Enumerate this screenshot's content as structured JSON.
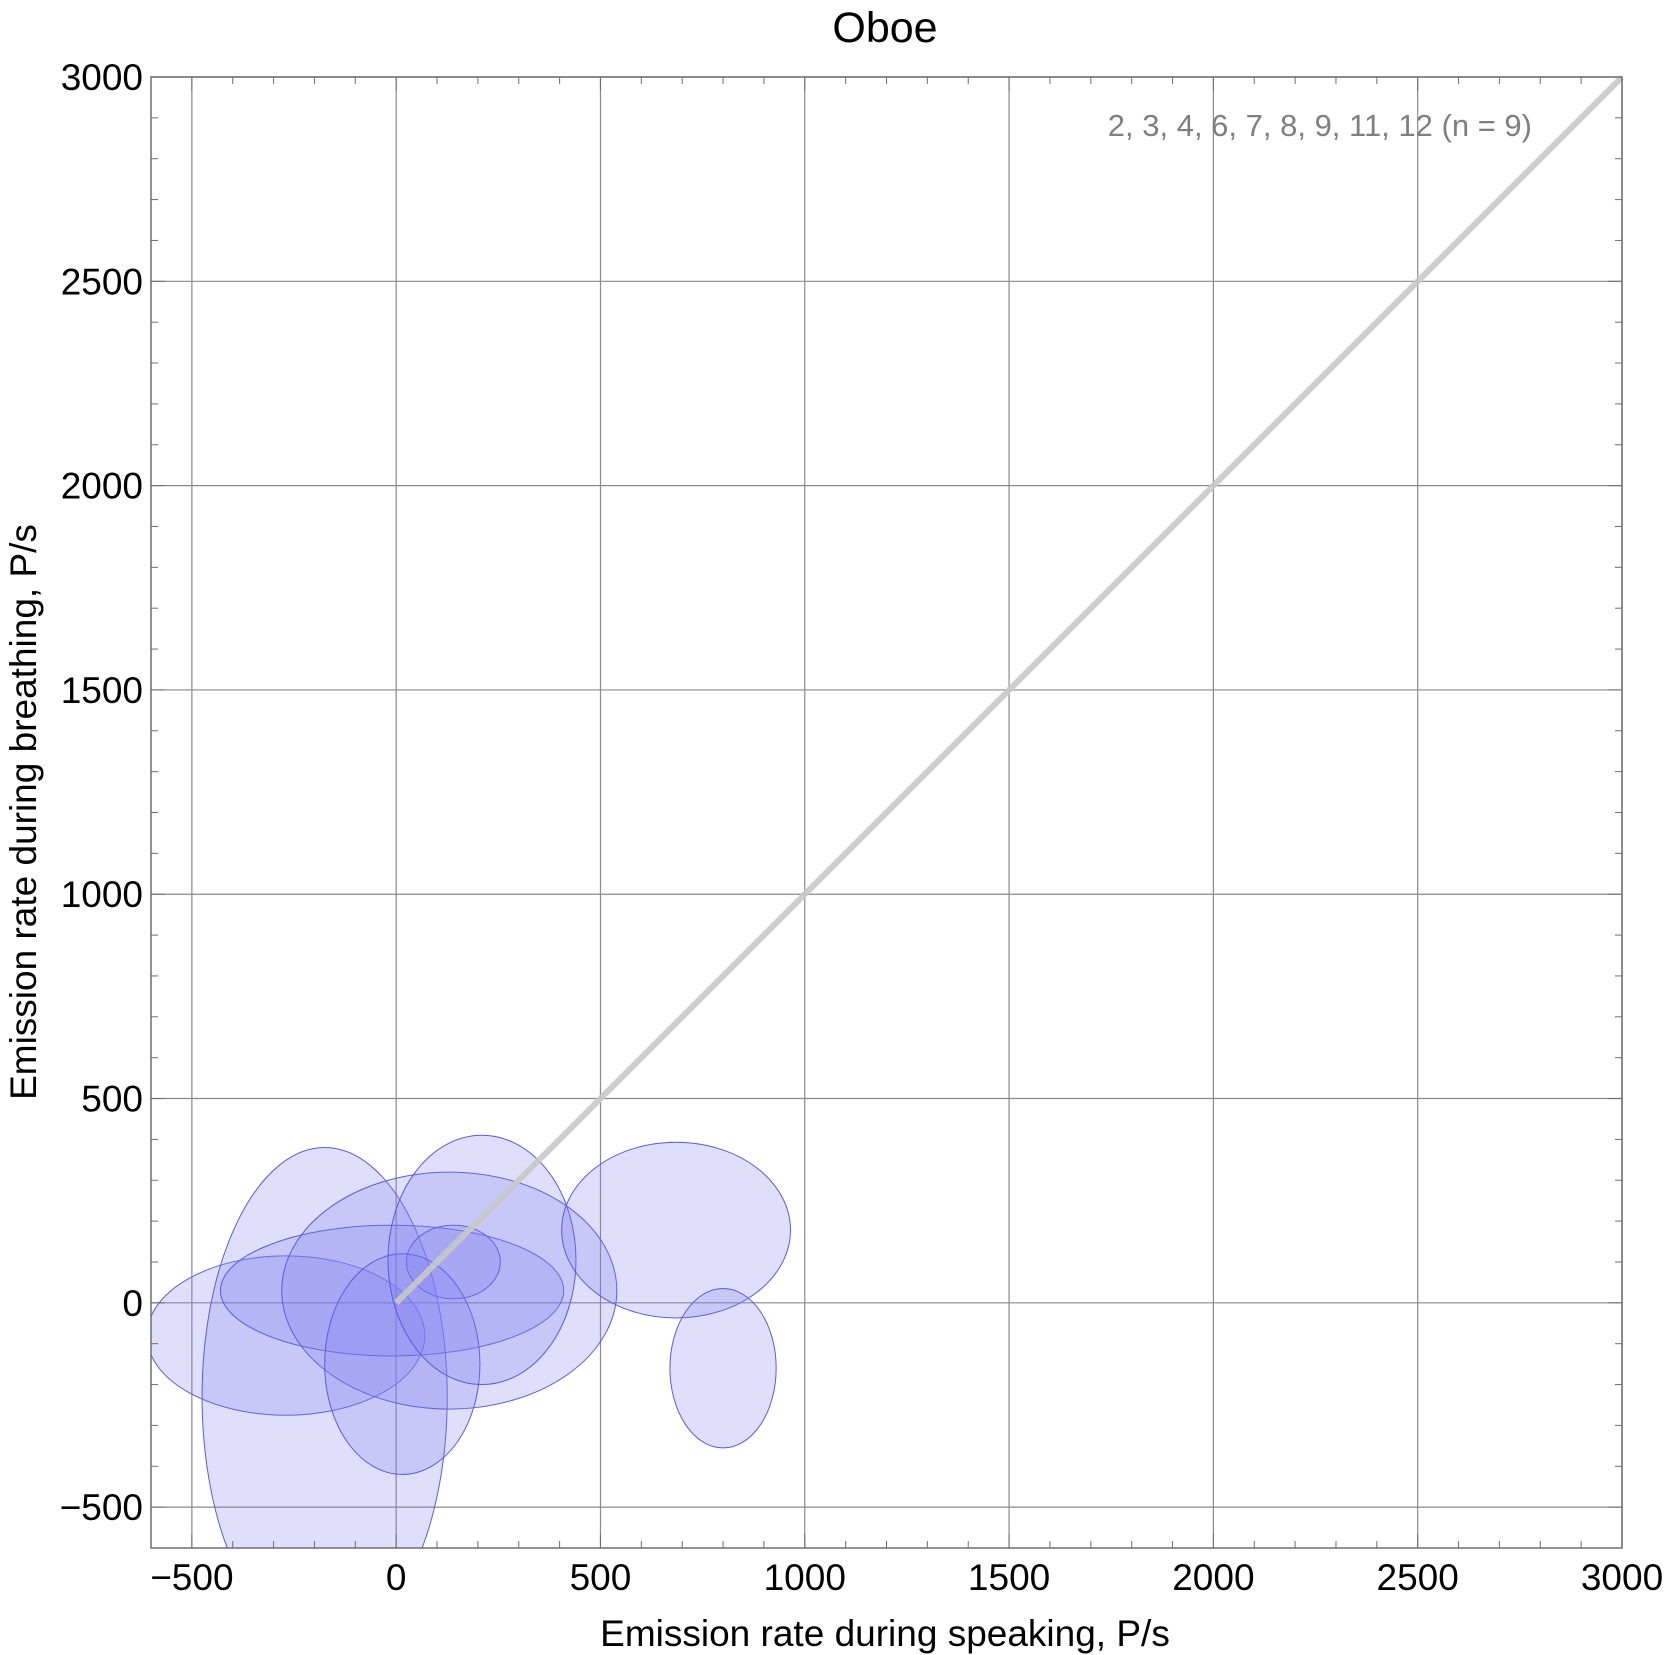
{
  "chart_data": {
    "type": "scatter",
    "title": "Oboe",
    "xlabel": "Emission rate during speaking,  P/s",
    "ylabel": "Emission rate during breathing,  P/s",
    "annotation": "2, 3, 4, 6, 7, 8, 9, 11, 12  (n = 9)",
    "xlim": [
      -600,
      3000
    ],
    "ylim": [
      -600,
      3000
    ],
    "x_ticks": [
      -500,
      0,
      500,
      1000,
      1500,
      2000,
      2500,
      3000
    ],
    "y_ticks": [
      -500,
      0,
      500,
      1000,
      1500,
      2000,
      2500,
      3000
    ],
    "x_tick_labels": [
      "−500",
      "0",
      "500",
      "1000",
      "1500",
      "2000",
      "2500",
      "3000"
    ],
    "y_tick_labels": [
      "−500",
      "0",
      "500",
      "1000",
      "1500",
      "2000",
      "2500",
      "3000"
    ],
    "grid": true,
    "identity_line": {
      "from": [
        0,
        0
      ],
      "to": [
        3000,
        3000
      ],
      "color": "#c8c8c8"
    },
    "ellipse_fill": "#8080f0",
    "ellipse_fill_opacity": 0.25,
    "ellipse_stroke": "#5a5ae6",
    "ellipses": [
      {
        "cx": -270,
        "cy": -80,
        "rx": 340,
        "ry": 195
      },
      {
        "cx": -175,
        "cy": -230,
        "rx": 300,
        "ry": 610
      },
      {
        "cx": -10,
        "cy": 30,
        "rx": 420,
        "ry": 160
      },
      {
        "cx": 130,
        "cy": 30,
        "rx": 410,
        "ry": 290
      },
      {
        "cx": 140,
        "cy": 100,
        "rx": 115,
        "ry": 90
      },
      {
        "cx": 15,
        "cy": -150,
        "rx": 190,
        "ry": 270
      },
      {
        "cx": 210,
        "cy": 105,
        "rx": 230,
        "ry": 305
      },
      {
        "cx": 685,
        "cy": 178,
        "rx": 280,
        "ry": 215
      },
      {
        "cx": 800,
        "cy": -160,
        "rx": 130,
        "ry": 195
      }
    ]
  }
}
